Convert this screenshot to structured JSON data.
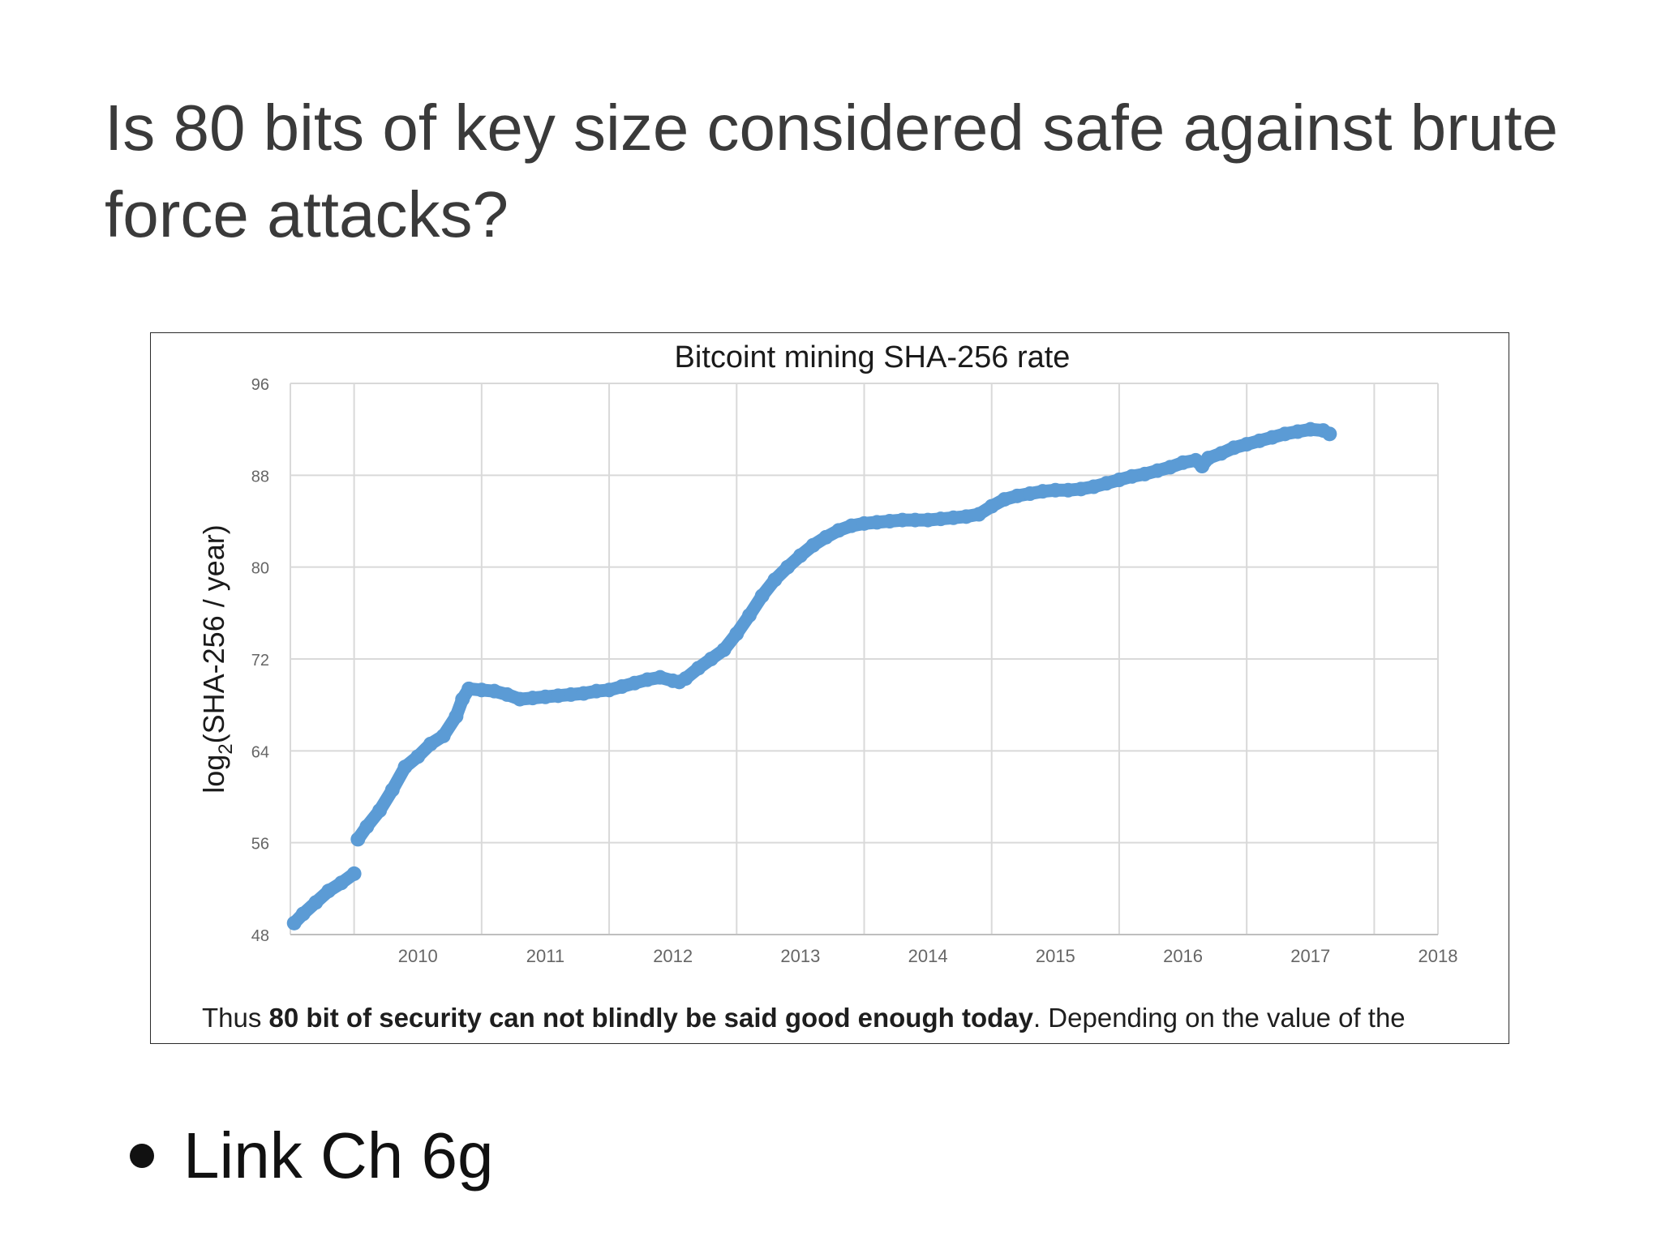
{
  "slide": {
    "title": "Is 80 bits of key size considered safe against brute force attacks?"
  },
  "figure": {
    "caption_prefix": "Thus ",
    "caption_bold": "80 bit of security can not blindly be said good enough today",
    "caption_suffix": ". Depending on the value of the"
  },
  "chart_data": {
    "type": "scatter",
    "title": "Bitcoint mining SHA-256 rate",
    "xlabel": "",
    "ylabel": "log2(SHA-256 / year)",
    "ylabel_base": "log",
    "ylabel_sub": "2",
    "ylabel_rest": "(SHA-256 / year)",
    "xlim": [
      2009.5,
      2018.5
    ],
    "ylim": [
      48,
      96
    ],
    "x_ticks": [
      "2010",
      "2011",
      "2012",
      "2013",
      "2014",
      "2015",
      "2016",
      "2017",
      "2018"
    ],
    "y_ticks": [
      "48",
      "56",
      "64",
      "72",
      "80",
      "88",
      "96"
    ],
    "grid": true,
    "series_color": "#5b9bd5",
    "series": [
      {
        "name": "SHA-256 rate",
        "points": [
          [
            2009.53,
            49.0
          ],
          [
            2009.6,
            49.8
          ],
          [
            2009.7,
            50.8
          ],
          [
            2009.8,
            51.8
          ],
          [
            2009.9,
            52.5
          ],
          [
            2010.0,
            53.3
          ],
          [
            2010.03,
            56.3
          ],
          [
            2010.1,
            57.4
          ],
          [
            2010.2,
            58.8
          ],
          [
            2010.3,
            60.6
          ],
          [
            2010.4,
            62.6
          ],
          [
            2010.5,
            63.5
          ],
          [
            2010.6,
            64.6
          ],
          [
            2010.7,
            65.3
          ],
          [
            2010.8,
            67.0
          ],
          [
            2010.85,
            68.5
          ],
          [
            2010.9,
            69.4
          ],
          [
            2011.0,
            69.3
          ],
          [
            2011.1,
            69.2
          ],
          [
            2011.2,
            68.9
          ],
          [
            2011.3,
            68.5
          ],
          [
            2011.4,
            68.6
          ],
          [
            2011.5,
            68.7
          ],
          [
            2011.6,
            68.8
          ],
          [
            2011.7,
            68.9
          ],
          [
            2011.8,
            69.0
          ],
          [
            2011.9,
            69.2
          ],
          [
            2012.0,
            69.3
          ],
          [
            2012.1,
            69.6
          ],
          [
            2012.2,
            69.9
          ],
          [
            2012.3,
            70.2
          ],
          [
            2012.4,
            70.4
          ],
          [
            2012.5,
            70.1
          ],
          [
            2012.55,
            70.0
          ],
          [
            2012.6,
            70.3
          ],
          [
            2012.7,
            71.2
          ],
          [
            2012.8,
            72.0
          ],
          [
            2012.9,
            72.8
          ],
          [
            2013.0,
            74.2
          ],
          [
            2013.1,
            75.8
          ],
          [
            2013.2,
            77.5
          ],
          [
            2013.3,
            78.9
          ],
          [
            2013.4,
            80.0
          ],
          [
            2013.5,
            81.0
          ],
          [
            2013.6,
            81.9
          ],
          [
            2013.7,
            82.6
          ],
          [
            2013.8,
            83.2
          ],
          [
            2013.9,
            83.6
          ],
          [
            2014.0,
            83.8
          ],
          [
            2014.1,
            83.9
          ],
          [
            2014.2,
            84.0
          ],
          [
            2014.3,
            84.1
          ],
          [
            2014.4,
            84.1
          ],
          [
            2014.5,
            84.1
          ],
          [
            2014.6,
            84.2
          ],
          [
            2014.7,
            84.3
          ],
          [
            2014.8,
            84.4
          ],
          [
            2014.9,
            84.6
          ],
          [
            2015.0,
            85.3
          ],
          [
            2015.1,
            85.9
          ],
          [
            2015.2,
            86.2
          ],
          [
            2015.3,
            86.4
          ],
          [
            2015.4,
            86.6
          ],
          [
            2015.5,
            86.7
          ],
          [
            2015.6,
            86.7
          ],
          [
            2015.7,
            86.8
          ],
          [
            2015.8,
            87.0
          ],
          [
            2015.9,
            87.3
          ],
          [
            2016.0,
            87.6
          ],
          [
            2016.1,
            87.9
          ],
          [
            2016.2,
            88.1
          ],
          [
            2016.3,
            88.4
          ],
          [
            2016.4,
            88.7
          ],
          [
            2016.5,
            89.1
          ],
          [
            2016.6,
            89.3
          ],
          [
            2016.65,
            88.8
          ],
          [
            2016.7,
            89.5
          ],
          [
            2016.8,
            89.9
          ],
          [
            2016.9,
            90.4
          ],
          [
            2017.0,
            90.7
          ],
          [
            2017.1,
            91.0
          ],
          [
            2017.2,
            91.3
          ],
          [
            2017.3,
            91.6
          ],
          [
            2017.4,
            91.8
          ],
          [
            2017.5,
            92.0
          ],
          [
            2017.6,
            91.9
          ],
          [
            2017.65,
            91.6
          ]
        ]
      }
    ]
  }
}
